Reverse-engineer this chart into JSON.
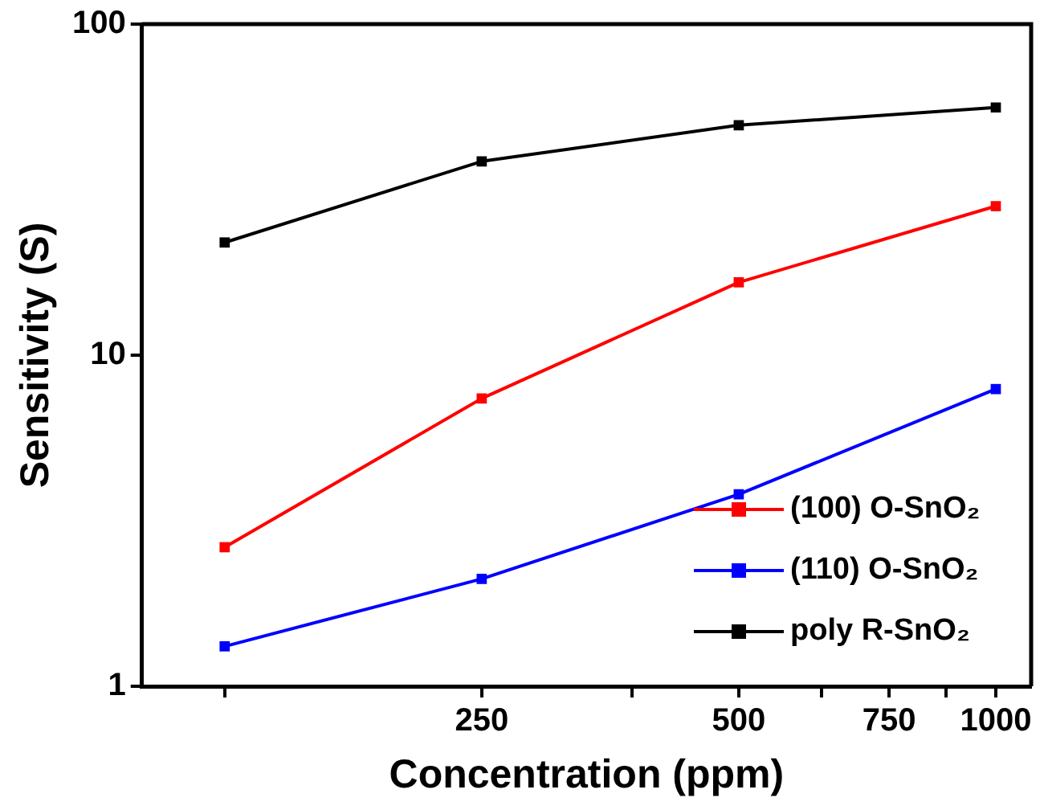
{
  "chart_data": {
    "type": "line",
    "xlabel": "Concentration (ppm)",
    "ylabel": "Sensitivity (S)",
    "x": [
      125,
      250,
      500,
      1000
    ],
    "series": [
      {
        "name": "(100) O-SnO₂",
        "color": "#ff0000",
        "values": [
          2.63,
          7.4,
          16.6,
          28.2
        ]
      },
      {
        "name": "(110) O-SnO₂",
        "color": "#0000ff",
        "values": [
          1.32,
          2.11,
          3.8,
          7.9
        ]
      },
      {
        "name": "poly R-SnO₂",
        "color": "#000000",
        "values": [
          21.9,
          38.5,
          49.5,
          56
        ]
      }
    ],
    "log": "xy",
    "xlim": [
      100,
      1100
    ],
    "xticks": [
      {
        "value": 125,
        "label": null
      },
      250,
      {
        "value": 375,
        "label": null
      },
      500,
      {
        "value": 625,
        "label": null
      },
      750,
      {
        "value": 875,
        "label": null
      },
      1000
    ],
    "ylim": [
      1,
      100
    ],
    "yticks": [
      1,
      10,
      100
    ],
    "marker": "square",
    "line_style": "solid",
    "legend": "bottom right",
    "grid": false
  }
}
